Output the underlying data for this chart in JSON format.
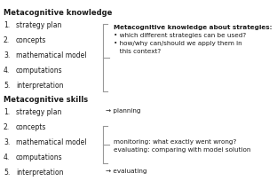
{
  "title_knowledge": "Metacognitive knowledge",
  "title_skills": "Metacognitive skills",
  "knowledge_items": [
    "strategy plan",
    "concepts",
    "mathematical model",
    "computations",
    "interpretation"
  ],
  "skills_items": [
    "strategy plan",
    "concepts",
    "mathematical model",
    "computations",
    "interpretation"
  ],
  "knowledge_bracket_text_line1": "Metacognitive knowledge about strategies:",
  "knowledge_bracket_text_line2": "• which different strategies can be used?",
  "knowledge_bracket_text_line3": "• how/why can/should we apply them in",
  "knowledge_bracket_text_line4": "   this context?",
  "skills_planning": "→ planning",
  "skills_bracket_text_line1": "monitoring: what exactly went wrong?",
  "skills_bracket_text_line2": "evaluating: comparing with model solution",
  "skills_evaluating": "→ evaluating",
  "bg_color": "#ffffff",
  "text_color": "#1a1a1a",
  "bracket_color": "#999999",
  "title_fontsize": 6.0,
  "item_fontsize": 5.5,
  "annot_fontsize": 5.2,
  "annot_bold_fontsize": 5.5
}
